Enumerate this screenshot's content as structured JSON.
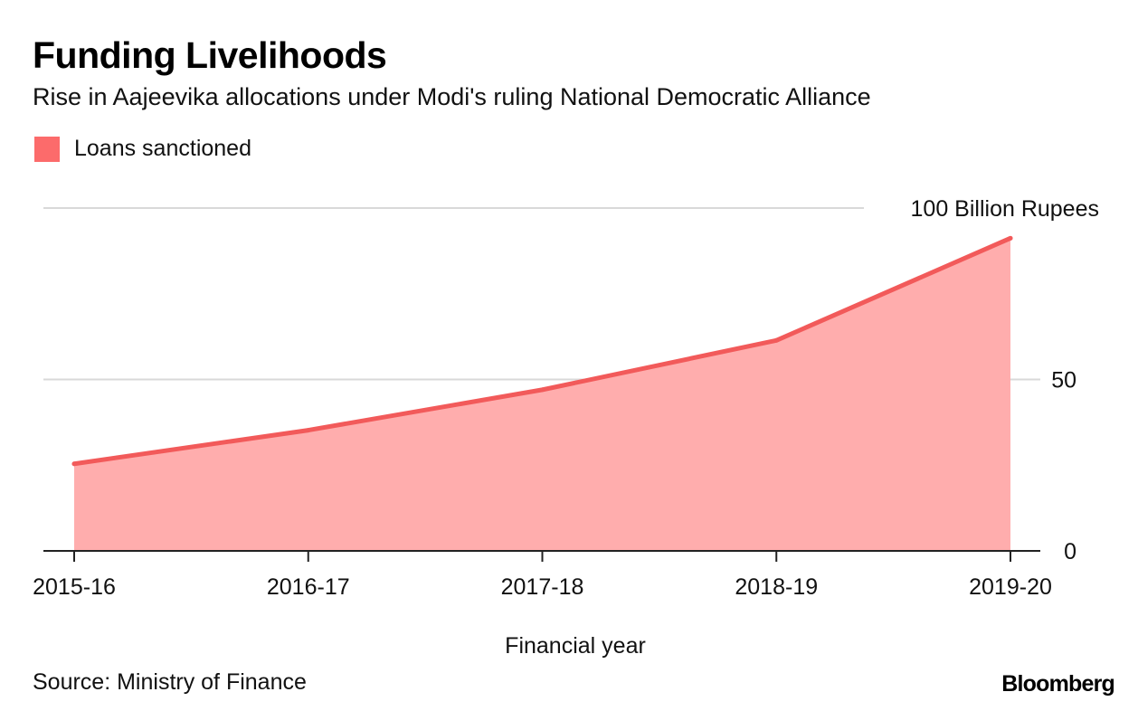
{
  "header": {
    "title": "Funding Livelihoods",
    "subtitle": "Rise in Aajeevika allocations under Modi's ruling National Democratic Alliance"
  },
  "legend": {
    "label": "Loans sanctioned"
  },
  "footer": {
    "source": "Source: Ministry of Finance",
    "brand": "Bloomberg"
  },
  "colors": {
    "line": "#f25a5a",
    "fill": "#ffadad",
    "legend_swatch": "#fc6b6b",
    "grid": "#d9d9d9",
    "axis": "#222222"
  },
  "chart_data": {
    "type": "area",
    "title": "Funding Livelihoods",
    "subtitle": "Rise in Aajeevika allocations under Modi's ruling National Democratic Alliance",
    "xlabel": "Financial year",
    "ylabel": "",
    "categories": [
      "2015-16",
      "2016-17",
      "2017-18",
      "2018-19",
      "2019-20"
    ],
    "series": [
      {
        "name": "Loans sanctioned",
        "values": [
          25.4,
          35.2,
          47.0,
          61.4,
          91.2
        ]
      }
    ],
    "ylim": [
      0,
      100
    ],
    "y_ticks": [
      0,
      50,
      100
    ],
    "y_tick_labels": [
      "0",
      "50",
      "100 Billion Rupees"
    ],
    "y_axis_side": "right",
    "grid": true,
    "legend_position": "top-left"
  }
}
